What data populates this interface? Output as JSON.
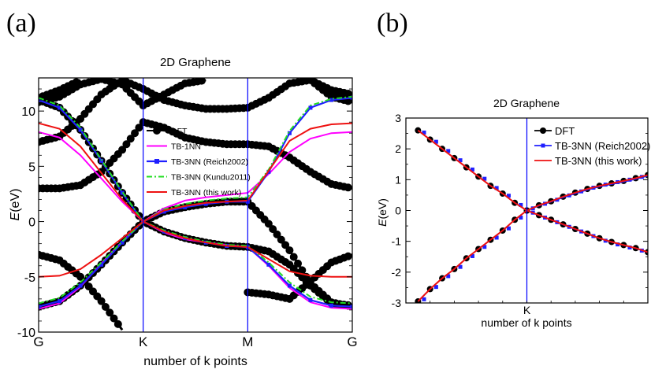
{
  "panels": [
    {
      "panel_label": "(a)",
      "title": "2D Graphene",
      "ylabel_italic": "E",
      "ylabel_unit": "(eV)",
      "xlabel": "number of k points"
    },
    {
      "panel_label": "(b)",
      "title": "2D Graphene",
      "ylabel_italic": "E",
      "ylabel_unit": "(eV)",
      "xlabel": "number of k points"
    }
  ],
  "colors": {
    "DFT": "#000000",
    "TB-1NN": "#ff00ff",
    "TB-3NN (Reich2002)": "#1f1fff",
    "TB-3NN (Kundu2011)": "#22dd22",
    "TB-3NN (this work)": "#ee1111",
    "kline": "#0000ff"
  },
  "chart_data": [
    {
      "type": "line",
      "title": "2D Graphene",
      "xlabel": "number of k points",
      "ylabel": "E(eV)",
      "ylim": [
        -10,
        13
      ],
      "yticks": [
        -10,
        -5,
        0,
        5,
        10
      ],
      "xticks": [
        "G",
        "K",
        "M",
        "G"
      ],
      "x_tick_positions": [
        0,
        1,
        2,
        3
      ],
      "vertical_lines_at": [
        1,
        2
      ],
      "legend_position": "center",
      "series": [
        {
          "name": "DFT",
          "marker": "circle",
          "note_points": "bands",
          "bands": [
            {
              "x": [
                0,
                0.2,
                0.4,
                0.6,
                0.8,
                1.0,
                1.2,
                1.4,
                1.6,
                1.8,
                2.0,
                2.2,
                2.4,
                2.6,
                2.8,
                3.0
              ],
              "y": [
                -7.7,
                -7.2,
                -5.8,
                -3.9,
                -1.9,
                0,
                0.9,
                1.3,
                1.6,
                1.8,
                1.8,
                -0.2,
                -2.6,
                -5.6,
                -7.3,
                -7.7
              ]
            },
            {
              "x": [
                0,
                0.2,
                0.4,
                0.6,
                0.8,
                1.0,
                1.2,
                1.4,
                1.6,
                1.8,
                2.0,
                2.2,
                2.4,
                2.6,
                2.8,
                3.0
              ],
              "y": [
                11.0,
                10.3,
                8.3,
                5.5,
                2.6,
                0,
                -0.9,
                -1.5,
                -1.9,
                -2.2,
                -2.3,
                -2.7,
                -3.9,
                -5.8,
                -7.4,
                -7.6
              ]
            },
            {
              "x": [
                0,
                0.2,
                0.4,
                0.6,
                0.8,
                1.0,
                1.2,
                1.4,
                1.6,
                1.8,
                2.0,
                2.2,
                2.4,
                2.6,
                2.8,
                3.0
              ],
              "y": [
                3.0,
                3.0,
                3.3,
                4.5,
                6.5,
                9.0,
                8.5,
                7.6,
                7.2,
                7.0,
                7.0,
                6.8,
                5.8,
                4.5,
                3.4,
                3.0
              ]
            },
            {
              "x": [
                0,
                0.2,
                0.4,
                0.6,
                0.8,
                1.0,
                1.2,
                1.4,
                1.6,
                1.8,
                2.0,
                2.2,
                2.4,
                2.6,
                2.8,
                3.0
              ],
              "y": [
                -3.0,
                -3.5,
                -5.0,
                -7.2,
                -9.8,
                null,
                null,
                null,
                null,
                null,
                -6.4,
                -6.6,
                -7.0,
                -5.4,
                -3.7,
                -3.0
              ]
            },
            {
              "x": [
                0,
                0.2,
                0.4,
                0.6,
                0.8,
                1.0,
                1.2,
                1.4,
                1.6,
                1.8,
                2.0,
                2.2,
                2.4,
                2.6,
                2.8,
                3.0
              ],
              "y": [
                7.2,
                7.7,
                9.3,
                11.5,
                12.8,
                12.0,
                11.0,
                10.5,
                10.2,
                10.2,
                10.3,
                11.2,
                12.5,
                12.8,
                11.3,
                10.8
              ]
            },
            {
              "x": [
                0,
                0.2,
                0.4,
                0.6,
                0.8,
                1.0,
                1.2,
                1.4,
                1.6,
                1.8,
                2.0,
                2.2,
                2.4,
                2.6,
                2.8,
                3.0
              ],
              "y": [
                11.2,
                11.9,
                12.8,
                null,
                null,
                null,
                null,
                null,
                null,
                null,
                null,
                null,
                null,
                12.8,
                11.9,
                11.5
              ]
            },
            {
              "x": [
                0,
                0.2,
                0.4,
                0.6,
                0.8,
                1.0,
                1.2,
                1.4,
                1.6,
                1.8,
                2.0,
                2.2,
                2.4,
                2.6,
                2.8,
                3.0
              ],
              "y": [
                10.8,
                11.3,
                12.4,
                12.9,
                12.4,
                10.5,
                11.5,
                12.5,
                12.8,
                null,
                null,
                null,
                null,
                null,
                null,
                null
              ]
            }
          ]
        },
        {
          "name": "TB-1NN",
          "x": [
            0,
            0.2,
            0.4,
            0.6,
            0.8,
            1.0,
            1.2,
            1.4,
            1.6,
            1.8,
            2.0,
            2.2,
            2.4,
            2.6,
            2.8,
            3.0
          ],
          "y_upper": [
            8.1,
            7.6,
            6.0,
            3.9,
            1.8,
            0,
            1.2,
            1.9,
            2.2,
            2.4,
            2.6,
            4.3,
            6.3,
            7.5,
            8.0,
            8.1
          ],
          "y_lower": [
            -7.9,
            -7.4,
            -5.9,
            -3.8,
            -1.8,
            0,
            -1.0,
            -1.6,
            -1.9,
            -2.1,
            -2.3,
            -4.0,
            -6.0,
            -7.3,
            -7.8,
            -7.9
          ]
        },
        {
          "name": "TB-3NN (Reich2002)",
          "x": [
            0,
            0.2,
            0.4,
            0.6,
            0.8,
            1.0,
            1.2,
            1.4,
            1.6,
            1.8,
            2.0,
            2.2,
            2.4,
            2.6,
            2.8,
            3.0
          ],
          "y_upper": [
            11.0,
            10.3,
            8.3,
            5.5,
            2.6,
            0,
            0.9,
            1.3,
            1.6,
            1.8,
            1.8,
            4.5,
            8.0,
            10.3,
            11.0,
            11.2
          ],
          "y_lower": [
            -7.7,
            -7.2,
            -5.8,
            -3.9,
            -1.9,
            0,
            -0.9,
            -1.5,
            -1.9,
            -2.2,
            -2.3,
            -3.9,
            -5.8,
            -7.1,
            -7.6,
            -7.7
          ]
        },
        {
          "name": "TB-3NN (Kundu2011)",
          "x": [
            0,
            0.2,
            0.4,
            0.6,
            0.8,
            1.0,
            1.2,
            1.4,
            1.6,
            1.8,
            2.0,
            2.2,
            2.4,
            2.6,
            2.8,
            3.0
          ],
          "y_upper": [
            11.2,
            10.5,
            8.5,
            5.6,
            2.7,
            0,
            1.1,
            1.6,
            1.9,
            2.1,
            2.2,
            4.7,
            8.2,
            10.5,
            11.1,
            11.3
          ],
          "y_lower": [
            -7.4,
            -6.9,
            -5.5,
            -3.7,
            -1.8,
            0,
            -0.8,
            -1.4,
            -1.8,
            -2.1,
            -2.2,
            -3.7,
            -5.5,
            -6.8,
            -7.3,
            -7.4
          ]
        },
        {
          "name": "TB-3NN (this work)",
          "x": [
            0,
            0.2,
            0.4,
            0.6,
            0.8,
            1.0,
            1.2,
            1.4,
            1.6,
            1.8,
            2.0,
            2.2,
            2.4,
            2.6,
            2.8,
            3.0
          ],
          "y_upper": [
            8.9,
            8.4,
            6.8,
            4.4,
            2.0,
            0,
            1.0,
            1.4,
            1.7,
            1.8,
            1.9,
            4.6,
            7.3,
            8.4,
            8.8,
            8.9
          ],
          "y_lower": [
            -5.0,
            -4.9,
            -4.3,
            -3.0,
            -1.5,
            0,
            -0.9,
            -1.5,
            -1.9,
            -2.2,
            -2.3,
            -3.4,
            -4.5,
            -4.9,
            -5.0,
            -5.0
          ]
        }
      ]
    },
    {
      "type": "line",
      "title": "2D Graphene",
      "xlabel": "number of k points",
      "ylabel": "E(eV)",
      "ylim": [
        -3,
        3
      ],
      "yticks": [
        -3,
        -2,
        -1,
        0,
        1,
        2,
        3
      ],
      "xticks": [
        "K"
      ],
      "x_range": [
        -1,
        1
      ],
      "vertical_lines_at": [
        0
      ],
      "legend_position": "top-right",
      "series": [
        {
          "name": "DFT",
          "marker": "circle",
          "x": [
            -0.9,
            -0.8,
            -0.7,
            -0.6,
            -0.5,
            -0.4,
            -0.3,
            -0.2,
            -0.1,
            0.0,
            0.1,
            0.2,
            0.3,
            0.4,
            0.5,
            0.6,
            0.7,
            0.8,
            0.9,
            1.0
          ],
          "y_upper": [
            2.6,
            2.3,
            2.0,
            1.7,
            1.4,
            1.1,
            0.8,
            0.55,
            0.25,
            0,
            0.17,
            0.3,
            0.45,
            0.58,
            0.7,
            0.8,
            0.88,
            0.96,
            1.05,
            1.15
          ],
          "y_lower": [
            -2.95,
            -2.55,
            -2.2,
            -1.9,
            -1.55,
            -1.25,
            -0.95,
            -0.65,
            -0.3,
            0,
            -0.15,
            -0.3,
            -0.45,
            -0.6,
            -0.75,
            -0.9,
            -1.02,
            -1.12,
            -1.22,
            -1.35
          ]
        },
        {
          "name": "TB-3NN (Reich2002)",
          "marker": "square",
          "x": [
            -0.9,
            -0.8,
            -0.7,
            -0.6,
            -0.5,
            -0.4,
            -0.3,
            -0.2,
            -0.1,
            0.0,
            0.1,
            0.2,
            0.3,
            0.4,
            0.5,
            0.6,
            0.7,
            0.8,
            0.9,
            1.0
          ],
          "y_upper": [
            2.6,
            2.3,
            2.0,
            1.7,
            1.4,
            1.1,
            0.8,
            0.55,
            0.25,
            0,
            0.15,
            0.28,
            0.42,
            0.55,
            0.67,
            0.77,
            0.85,
            0.93,
            1.02,
            1.12
          ],
          "y_lower": [
            -2.95,
            -2.55,
            -2.2,
            -1.9,
            -1.55,
            -1.25,
            -0.95,
            -0.65,
            -0.3,
            0,
            -0.16,
            -0.31,
            -0.46,
            -0.61,
            -0.76,
            -0.91,
            -1.03,
            -1.13,
            -1.23,
            -1.36
          ]
        },
        {
          "name": "TB-3NN (this work)",
          "x": [
            -0.9,
            -0.8,
            -0.7,
            -0.6,
            -0.5,
            -0.4,
            -0.3,
            -0.2,
            -0.1,
            0.0,
            0.1,
            0.2,
            0.3,
            0.4,
            0.5,
            0.6,
            0.7,
            0.8,
            0.9,
            1.0
          ],
          "y_upper": [
            2.6,
            2.3,
            2.0,
            1.7,
            1.4,
            1.1,
            0.8,
            0.55,
            0.25,
            0,
            0.17,
            0.3,
            0.45,
            0.58,
            0.7,
            0.8,
            0.88,
            0.96,
            1.05,
            1.15
          ],
          "y_lower": [
            -2.95,
            -2.55,
            -2.2,
            -1.9,
            -1.55,
            -1.25,
            -0.95,
            -0.65,
            -0.3,
            0,
            -0.15,
            -0.3,
            -0.45,
            -0.6,
            -0.75,
            -0.9,
            -1.02,
            -1.12,
            -1.22,
            -1.35
          ]
        }
      ]
    }
  ]
}
